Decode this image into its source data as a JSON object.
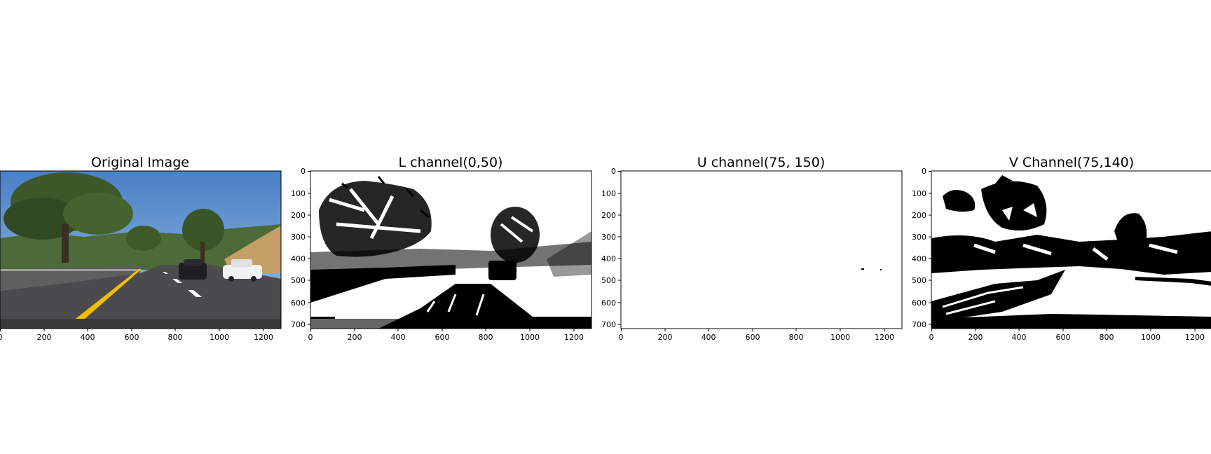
{
  "panels": [
    {
      "title": "Original Image",
      "kind": "photo",
      "show_y_axis": false
    },
    {
      "title": "L channel(0,50)",
      "kind": "binary",
      "show_y_axis": true
    },
    {
      "title": "U channel(75, 150)",
      "kind": "binary",
      "show_y_axis": true
    },
    {
      "title": "V Channel(75,140)",
      "kind": "binary",
      "show_y_axis": true
    }
  ],
  "x_ticks": [
    "0",
    "200",
    "400",
    "600",
    "800",
    "1000",
    "1200"
  ],
  "y_ticks": [
    "0",
    "100",
    "200",
    "300",
    "400",
    "500",
    "600",
    "700"
  ],
  "image_extent": {
    "width": 1280,
    "height": 720
  },
  "colors": {
    "sky": "#5b8fcf",
    "road": "#4a4a4a",
    "lane_yellow": "#f2c200",
    "lane_white": "#ffffff",
    "foliage": "#3f5a2a",
    "hill": "#c7a46a",
    "mask_on": "#ffffff",
    "mask_off": "#000000"
  }
}
